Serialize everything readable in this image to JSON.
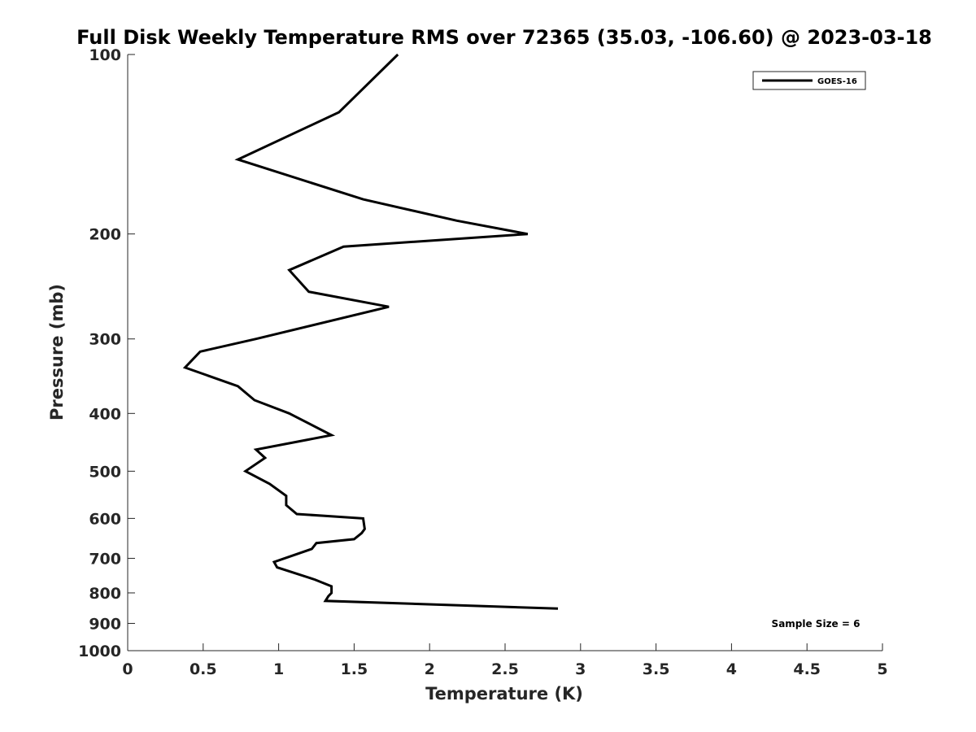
{
  "chart_data": {
    "type": "line",
    "title": "Full Disk Weekly Temperature RMS over 72365 (35.03, -106.60) @ 2023-03-18",
    "xlabel": "Temperature (K)",
    "ylabel": "Pressure (mb)",
    "xlim": [
      0,
      5
    ],
    "ylim": [
      100,
      1000
    ],
    "yscale": "log",
    "y_reversed": true,
    "x_ticks": [
      0,
      0.5,
      1,
      1.5,
      2,
      2.5,
      3,
      3.5,
      4,
      4.5,
      5
    ],
    "x_tick_labels": [
      "0",
      "0.5",
      "1",
      "1.5",
      "2",
      "2.5",
      "3",
      "3.5",
      "4",
      "4.5",
      "5"
    ],
    "y_ticks": [
      100,
      200,
      300,
      400,
      500,
      600,
      700,
      800,
      900,
      1000
    ],
    "y_tick_labels": [
      "100",
      "200",
      "300",
      "400",
      "500",
      "600",
      "700",
      "800",
      "900",
      "1000"
    ],
    "grid": false,
    "legend_position": "top-right",
    "annotation": "Sample Size = 6",
    "series": [
      {
        "name": "GOES-16",
        "color": "#000000",
        "points": [
          [
            1.79,
            100
          ],
          [
            1.4,
            125
          ],
          [
            0.73,
            150
          ],
          [
            1.56,
            175
          ],
          [
            2.18,
            190
          ],
          [
            2.65,
            200
          ],
          [
            1.43,
            210
          ],
          [
            1.07,
            230
          ],
          [
            1.2,
            250
          ],
          [
            1.73,
            265
          ],
          [
            0.85,
            300
          ],
          [
            0.48,
            315
          ],
          [
            0.38,
            335
          ],
          [
            0.73,
            360
          ],
          [
            0.84,
            380
          ],
          [
            1.07,
            400
          ],
          [
            1.35,
            435
          ],
          [
            0.85,
            460
          ],
          [
            0.91,
            475
          ],
          [
            0.78,
            500
          ],
          [
            0.94,
            525
          ],
          [
            1.05,
            550
          ],
          [
            1.05,
            570
          ],
          [
            1.12,
            590
          ],
          [
            1.56,
            600
          ],
          [
            1.57,
            625
          ],
          [
            1.55,
            635
          ],
          [
            1.5,
            650
          ],
          [
            1.25,
            660
          ],
          [
            1.22,
            675
          ],
          [
            0.97,
            710
          ],
          [
            0.99,
            725
          ],
          [
            1.24,
            760
          ],
          [
            1.35,
            780
          ],
          [
            1.35,
            800
          ],
          [
            1.33,
            810
          ],
          [
            1.31,
            825
          ],
          [
            2.85,
            850
          ]
        ]
      }
    ]
  }
}
